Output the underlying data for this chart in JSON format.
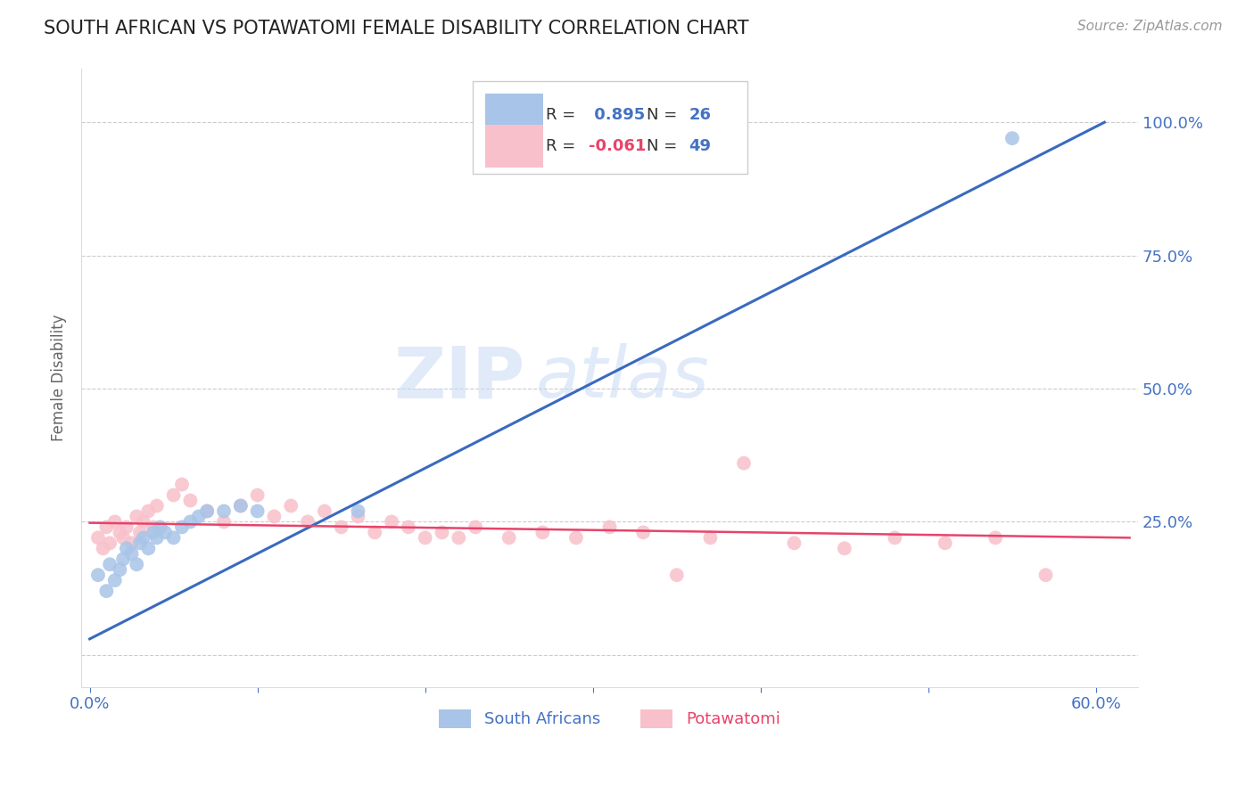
{
  "title": "SOUTH AFRICAN VS POTAWATOMI FEMALE DISABILITY CORRELATION CHART",
  "source": "Source: ZipAtlas.com",
  "ylabel": "Female Disability",
  "x_ticks": [
    0.0,
    0.1,
    0.2,
    0.3,
    0.4,
    0.5,
    0.6
  ],
  "x_tick_labels": [
    "0.0%",
    "",
    "",
    "",
    "",
    "",
    "60.0%"
  ],
  "y_ticks": [
    0.0,
    0.25,
    0.5,
    0.75,
    1.0
  ],
  "y_tick_labels_right": [
    "",
    "25.0%",
    "50.0%",
    "75.0%",
    "100.0%"
  ],
  "xlim": [
    -0.005,
    0.625
  ],
  "ylim": [
    -0.06,
    1.1
  ],
  "blue_R": 0.895,
  "blue_N": 26,
  "pink_R": -0.061,
  "pink_N": 49,
  "blue_color": "#4472c4",
  "pink_scatter_color": "#f8c0cb",
  "blue_scatter_color": "#a8c4e8",
  "blue_line_color": "#3a6abf",
  "pink_line_color": "#e8436a",
  "watermark_zip": "ZIP",
  "watermark_atlas": "atlas",
  "legend_blue_label": "South Africans",
  "legend_pink_label": "Potawatomi",
  "blue_points_x": [
    0.005,
    0.01,
    0.012,
    0.015,
    0.018,
    0.02,
    0.022,
    0.025,
    0.028,
    0.03,
    0.032,
    0.035,
    0.038,
    0.04,
    0.042,
    0.045,
    0.05,
    0.055,
    0.06,
    0.065,
    0.07,
    0.08,
    0.09,
    0.1,
    0.16,
    0.55
  ],
  "blue_points_y": [
    0.15,
    0.12,
    0.17,
    0.14,
    0.16,
    0.18,
    0.2,
    0.19,
    0.17,
    0.21,
    0.22,
    0.2,
    0.23,
    0.22,
    0.24,
    0.23,
    0.22,
    0.24,
    0.25,
    0.26,
    0.27,
    0.27,
    0.28,
    0.27,
    0.27,
    0.97
  ],
  "pink_points_x": [
    0.005,
    0.008,
    0.01,
    0.012,
    0.015,
    0.018,
    0.02,
    0.022,
    0.025,
    0.028,
    0.03,
    0.032,
    0.035,
    0.038,
    0.04,
    0.05,
    0.055,
    0.06,
    0.07,
    0.08,
    0.09,
    0.1,
    0.11,
    0.12,
    0.13,
    0.14,
    0.15,
    0.16,
    0.17,
    0.18,
    0.19,
    0.2,
    0.21,
    0.22,
    0.23,
    0.25,
    0.27,
    0.29,
    0.31,
    0.33,
    0.35,
    0.37,
    0.39,
    0.42,
    0.45,
    0.48,
    0.51,
    0.54,
    0.57
  ],
  "pink_points_y": [
    0.22,
    0.2,
    0.24,
    0.21,
    0.25,
    0.23,
    0.22,
    0.24,
    0.21,
    0.26,
    0.23,
    0.25,
    0.27,
    0.24,
    0.28,
    0.3,
    0.32,
    0.29,
    0.27,
    0.25,
    0.28,
    0.3,
    0.26,
    0.28,
    0.25,
    0.27,
    0.24,
    0.26,
    0.23,
    0.25,
    0.24,
    0.22,
    0.23,
    0.22,
    0.24,
    0.22,
    0.23,
    0.22,
    0.24,
    0.23,
    0.15,
    0.22,
    0.36,
    0.21,
    0.2,
    0.22,
    0.21,
    0.22,
    0.15
  ],
  "blue_line_x": [
    0.0,
    0.605
  ],
  "blue_line_y": [
    0.03,
    1.0
  ],
  "pink_line_x": [
    0.0,
    0.62
  ],
  "pink_line_y": [
    0.248,
    0.22
  ]
}
